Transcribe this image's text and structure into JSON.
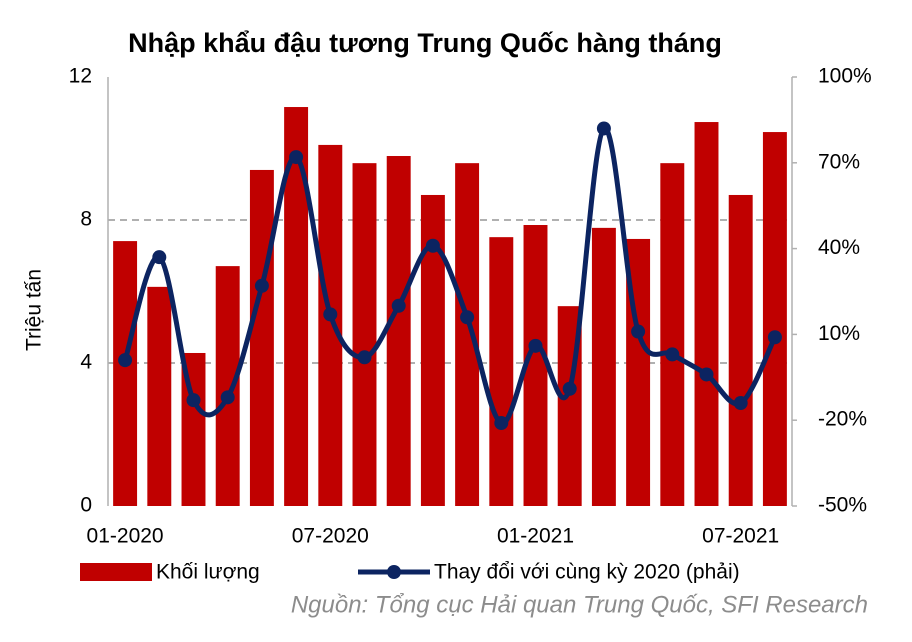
{
  "chart_data": {
    "type": "bar_line",
    "title": "Nhập khẩu đậu tương Trung Quốc hàng tháng",
    "y_label": "Triệu tấn",
    "source": "Nguồn: Tổng cục Hải quan Trung Quốc, SFI Research",
    "categories": [
      "01-2020",
      null,
      null,
      null,
      null,
      null,
      "07-2020",
      null,
      null,
      null,
      null,
      null,
      "01-2021",
      null,
      null,
      null,
      null,
      null,
      "07-2021",
      null
    ],
    "series": [
      {
        "name": "Khối lượng",
        "type": "bar",
        "color": "#c00000",
        "values": [
          7.41,
          6.13,
          4.28,
          6.71,
          9.4,
          11.16,
          10.1,
          9.59,
          9.79,
          8.7,
          9.59,
          7.52,
          7.86,
          5.59,
          7.78,
          7.47,
          9.59,
          10.74,
          8.7,
          10.46
        ]
      },
      {
        "name": "Thay đổi với cùng kỳ 2020 (phải)",
        "type": "line",
        "axis": "y2",
        "color": "#0c2461",
        "values": [
          1,
          37,
          -13,
          -12,
          27,
          72,
          17,
          2,
          20,
          41,
          16,
          -21,
          6,
          -9,
          82,
          11,
          3,
          -4,
          -14,
          9
        ]
      }
    ],
    "ylim": [
      0,
      12
    ],
    "yticks": [
      0,
      4,
      8,
      12
    ],
    "y2lim": [
      -50,
      100
    ],
    "y2ticks": [
      {
        "value": -50,
        "label": "-50%"
      },
      {
        "value": -20,
        "label": "-20%"
      },
      {
        "value": 10,
        "label": "10%"
      },
      {
        "value": 40,
        "label": "40%"
      },
      {
        "value": 70,
        "label": "70%"
      },
      {
        "value": 100,
        "label": "100%"
      }
    ],
    "grid": true
  }
}
